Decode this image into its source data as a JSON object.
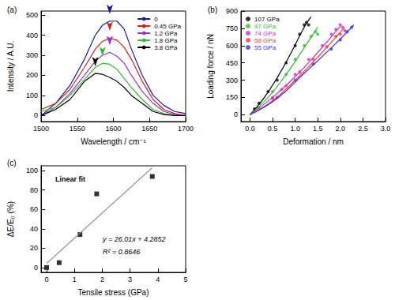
{
  "chart_data": [
    {
      "type": "line",
      "title": "(a)",
      "x_label": "Wavelength / cm⁻¹",
      "y_label": "Intensity / A.U.",
      "x": [
        1500,
        1520,
        1540,
        1560,
        1575,
        1585,
        1595,
        1605,
        1615,
        1625,
        1640,
        1655,
        1670,
        1685,
        1700
      ],
      "series": [
        {
          "name": "0",
          "color": "#1a1aa6",
          "values": [
            0,
            60,
            150,
            280,
            400,
            450,
            470,
            470,
            430,
            330,
            200,
            100,
            50,
            20,
            10
          ]
        },
        {
          "name": "0.45 GPa",
          "color": "#cc2222",
          "values": [
            30,
            60,
            130,
            240,
            330,
            370,
            385,
            375,
            340,
            280,
            170,
            80,
            30,
            10,
            0
          ]
        },
        {
          "name": "1.2 GPa",
          "color": "#9933cc",
          "values": [
            0,
            40,
            110,
            200,
            270,
            300,
            315,
            295,
            260,
            200,
            120,
            60,
            20,
            5,
            0
          ]
        },
        {
          "name": "1.8 GPa",
          "color": "#33bb33",
          "values": [
            20,
            40,
            100,
            180,
            240,
            260,
            255,
            230,
            185,
            140,
            80,
            30,
            10,
            0,
            0
          ]
        },
        {
          "name": "3.8 GPa",
          "color": "#000000",
          "values": [
            0,
            30,
            80,
            170,
            210,
            205,
            190,
            170,
            140,
            100,
            60,
            20,
            5,
            0,
            0
          ]
        }
      ],
      "xlim": [
        1500,
        1700
      ],
      "xticks": [
        1500,
        1550,
        1600,
        1650,
        1700
      ],
      "ylim": [
        -30,
        520
      ],
      "yticks": [
        0,
        100,
        200,
        300,
        400,
        500
      ],
      "grid": false,
      "legend": "upper right",
      "marker": "arrow"
    },
    {
      "type": "scatter",
      "title": "(b)",
      "x_label": "Deformation / nm",
      "y_label": "Loading force / nN",
      "series": [
        {
          "name": "107 GPa",
          "color": "#000000",
          "x": [
            0.1,
            0.2,
            0.4,
            0.6,
            0.8,
            1.0,
            1.1,
            1.2,
            1.25,
            1.3
          ],
          "values": [
            50,
            100,
            200,
            300,
            450,
            600,
            700,
            780,
            800,
            780
          ],
          "fit": {
            "x": [
              0,
              0.3,
              0.6,
              0.9,
              1.2,
              1.35
            ],
            "values": [
              0,
              140,
              320,
              530,
              760,
              850
            ]
          }
        },
        {
          "name": "97 GPa",
          "color": "#33bb33",
          "x": [
            0.2,
            0.5,
            0.8,
            1.0,
            1.2,
            1.35,
            1.45,
            1.5
          ],
          "values": [
            60,
            200,
            350,
            480,
            600,
            680,
            720,
            700
          ],
          "fit": {
            "x": [
              0,
              0.4,
              0.8,
              1.2,
              1.5
            ],
            "values": [
              0,
              150,
              350,
              580,
              760
            ]
          }
        },
        {
          "name": "74 GPa",
          "color": "#cc33cc",
          "x": [
            0.5,
            0.7,
            1.0,
            1.3,
            1.6,
            1.8,
            1.9,
            2.0,
            2.05
          ],
          "values": [
            150,
            220,
            350,
            480,
            600,
            700,
            740,
            780,
            760
          ],
          "fit": {
            "x": [
              0,
              0.5,
              1.0,
              1.5,
              2.0
            ],
            "values": [
              0,
              150,
              330,
              540,
              770
            ]
          }
        },
        {
          "name": "58 GPa",
          "color": "#ff3333",
          "x": [
            0.5,
            0.8,
            1.1,
            1.4,
            1.7,
            1.9,
            2.0,
            2.1
          ],
          "values": [
            140,
            250,
            370,
            480,
            590,
            680,
            700,
            730
          ],
          "fit": {
            "x": [
              0,
              0.5,
              1.0,
              1.5,
              2.1
            ],
            "values": [
              0,
              120,
              300,
              500,
              760
            ]
          }
        },
        {
          "name": "55 GPa",
          "color": "#3333ff",
          "x": [
            0.6,
            1.0,
            1.4,
            1.8,
            2.0,
            2.15,
            2.25
          ],
          "values": [
            150,
            300,
            440,
            570,
            650,
            720,
            760
          ],
          "fit": {
            "x": [
              0,
              0.6,
              1.2,
              1.8,
              2.3
            ],
            "values": [
              0,
              140,
              360,
              580,
              780
            ]
          }
        }
      ],
      "xlim": [
        -0.2,
        3.0
      ],
      "xticks": [
        {
          "value": 0,
          "label": "0.0"
        },
        0.5,
        {
          "value": 1,
          "label": "1.0"
        },
        1.5,
        {
          "value": 2,
          "label": "2.0"
        },
        2.5,
        {
          "value": 3,
          "label": "3.0"
        }
      ],
      "ylim": [
        -60,
        900
      ],
      "yticks": [
        0,
        150,
        300,
        450,
        600,
        750,
        900
      ],
      "grid": false,
      "legend": "upper left",
      "marker": "circle",
      "line_style": "solid"
    },
    {
      "type": "scatter",
      "title": "(c)",
      "x_label": "Tensile stress (GPa)",
      "y_label": "ΔE/E₀ (%)",
      "annotations": [
        "Linear fit",
        "y = 26.01x + 4.2852",
        "R² = 0.8646"
      ],
      "series": [
        {
          "color": "#000000",
          "x": [
            0,
            0.45,
            1.2,
            1.8,
            3.8
          ],
          "values": [
            0,
            5,
            34,
            76,
            94
          ],
          "fit": {
            "x": [
              0,
              3.8
            ],
            "values": [
              4.29,
              103.1
            ]
          }
        }
      ],
      "xlim": [
        -0.2,
        5
      ],
      "xticks": [
        0,
        1,
        2,
        3,
        4,
        5
      ],
      "ylim": [
        -5,
        105
      ],
      "yticks": [
        0,
        20,
        40,
        60,
        80,
        100
      ],
      "grid": false,
      "marker": "square",
      "line_style": "solid"
    }
  ]
}
